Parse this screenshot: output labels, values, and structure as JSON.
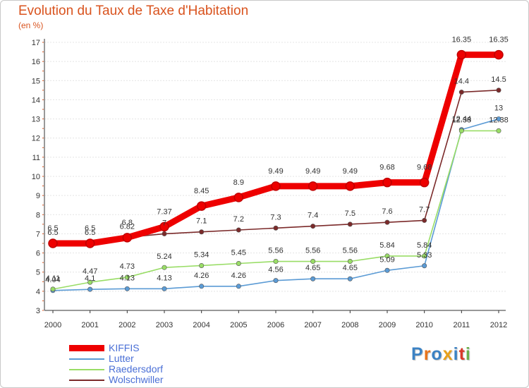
{
  "chart_data": {
    "type": "line",
    "title": "Evolution du Taux de Taxe d'Habitation",
    "subtitle": "(en %)",
    "x": [
      "2000",
      "2001",
      "2002",
      "2003",
      "2004",
      "2005",
      "2006",
      "2007",
      "2008",
      "2009",
      "2010",
      "2011",
      "2012"
    ],
    "ylim": [
      3,
      17
    ],
    "yticks": [
      3,
      4,
      5,
      6,
      7,
      8,
      9,
      10,
      11,
      12,
      13,
      14,
      15,
      16,
      17
    ],
    "grid": "horizontal",
    "legend_position": "bottom-left",
    "series": [
      {
        "name": "KIFFIS",
        "color": "#ee0000",
        "values": [
          6.5,
          6.5,
          6.8,
          7.37,
          8.45,
          8.9,
          9.49,
          9.49,
          9.49,
          9.68,
          9.68,
          16.35,
          16.35
        ],
        "labels": [
          "6.5",
          "6.5",
          "6.8",
          "7.37",
          "8.45",
          "8.9",
          "9.49",
          "9.49",
          "9.49",
          "9.68",
          "9.68",
          "16.35",
          "16.35"
        ]
      },
      {
        "name": "Lutter",
        "color": "#5b9bd5",
        "values": [
          4.04,
          4.1,
          4.13,
          4.13,
          4.26,
          4.26,
          4.56,
          4.65,
          4.65,
          5.09,
          5.33,
          12.44,
          13
        ],
        "labels": [
          "4.04",
          "4.1",
          "4.13",
          "4.13",
          "4.26",
          "4.26",
          "4.56",
          "4.65",
          "4.65",
          "5.09",
          "5.33",
          "12.44",
          "13"
        ]
      },
      {
        "name": "Raedersdorf",
        "color": "#99dd66",
        "values": [
          4.11,
          4.47,
          4.73,
          5.24,
          5.34,
          5.45,
          5.56,
          5.56,
          5.56,
          5.84,
          5.84,
          12.38,
          12.38
        ],
        "labels": [
          "4.11",
          "4.47",
          "4.73",
          "5.24",
          "5.34",
          "5.45",
          "5.56",
          "5.56",
          "5.56",
          "5.84",
          "5.84",
          "12.38",
          "12.38"
        ]
      },
      {
        "name": "Wolschwiller",
        "color": "#7b2a2a",
        "values": [
          6.5,
          6.5,
          6.82,
          7,
          7.1,
          7.2,
          7.3,
          7.4,
          7.5,
          7.6,
          7.7,
          14.4,
          14.5
        ],
        "labels": [
          "6.5",
          "6.5",
          "6.82",
          "7",
          "7.1",
          "7.2",
          "7.3",
          "7.4",
          "7.5",
          "7.6",
          "7.7",
          "14.4",
          "14.5"
        ]
      }
    ]
  },
  "logo": {
    "letters": [
      "P",
      "r",
      "o",
      "x",
      "i",
      "t",
      "i"
    ],
    "colors": [
      "#3b82c4",
      "#e8731a",
      "#3b82c4",
      "#e8a01a",
      "#3b82c4",
      "#d83a2a",
      "#6ab04c"
    ]
  }
}
